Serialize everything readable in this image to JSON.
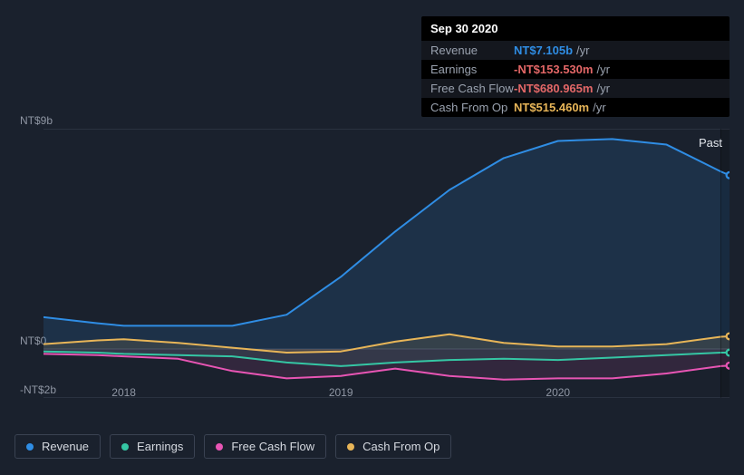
{
  "tooltip": {
    "date": "Sep 30 2020",
    "rows": [
      {
        "label": "Revenue",
        "value": "NT$7.105b",
        "color": "#2f8de4",
        "suffix": "/yr"
      },
      {
        "label": "Earnings",
        "value": "-NT$153.530m",
        "color": "#e36767",
        "suffix": "/yr"
      },
      {
        "label": "Free Cash Flow",
        "value": "-NT$680.965m",
        "color": "#e36767",
        "suffix": "/yr"
      },
      {
        "label": "Cash From Op",
        "value": "NT$515.460m",
        "color": "#e7b558",
        "suffix": "/yr"
      }
    ]
  },
  "chart": {
    "type": "area",
    "background_color": "#1a212d",
    "grid_color": "#3a4252",
    "text_color": "#8f96a3",
    "label_fontsize": 12,
    "past_label": "Past",
    "highlight_x": 3.75,
    "y_ticks": [
      {
        "v": 9,
        "label": "NT$9b"
      },
      {
        "v": 0,
        "label": "NT$0"
      },
      {
        "v": -2,
        "label": "-NT$2b"
      }
    ],
    "x_ticks": [
      {
        "v": 1.0,
        "label": "2018"
      },
      {
        "v": 2.0,
        "label": "2019"
      },
      {
        "v": 3.0,
        "label": "2020"
      }
    ],
    "x_range": [
      0.63,
      3.79
    ],
    "y_range": [
      -2,
      9
    ],
    "series": [
      {
        "key": "revenue",
        "name": "Revenue",
        "color": "#2f8de4",
        "fill_opacity": 0.15,
        "line_width": 2,
        "x": [
          0.63,
          0.88,
          1.0,
          1.25,
          1.5,
          1.75,
          2.0,
          2.25,
          2.5,
          2.75,
          3.0,
          3.25,
          3.5,
          3.75,
          3.79
        ],
        "y": [
          1.3,
          1.05,
          0.95,
          0.95,
          0.95,
          1.4,
          2.95,
          4.8,
          6.5,
          7.8,
          8.5,
          8.58,
          8.35,
          7.25,
          7.1
        ]
      },
      {
        "key": "earnings",
        "name": "Earnings",
        "color": "#35c6a4",
        "fill_opacity": 0.12,
        "line_width": 2,
        "x": [
          0.63,
          0.88,
          1.0,
          1.25,
          1.5,
          1.75,
          2.0,
          2.25,
          2.5,
          2.75,
          3.0,
          3.25,
          3.5,
          3.75,
          3.79
        ],
        "y": [
          -0.1,
          -0.15,
          -0.2,
          -0.25,
          -0.3,
          -0.55,
          -0.7,
          -0.55,
          -0.45,
          -0.4,
          -0.45,
          -0.35,
          -0.25,
          -0.15,
          -0.15
        ]
      },
      {
        "key": "fcf",
        "name": "Free Cash Flow",
        "color": "#e855b4",
        "fill_opacity": 0.12,
        "line_width": 2,
        "x": [
          0.63,
          0.88,
          1.0,
          1.25,
          1.5,
          1.75,
          2.0,
          2.25,
          2.5,
          2.75,
          3.0,
          3.25,
          3.5,
          3.75,
          3.79
        ],
        "y": [
          -0.2,
          -0.25,
          -0.3,
          -0.4,
          -0.9,
          -1.2,
          -1.1,
          -0.8,
          -1.1,
          -1.25,
          -1.2,
          -1.2,
          -1.0,
          -0.7,
          -0.68
        ]
      },
      {
        "key": "cfo",
        "name": "Cash From Op",
        "color": "#e7b558",
        "fill_opacity": 0.12,
        "line_width": 2,
        "x": [
          0.63,
          0.88,
          1.0,
          1.25,
          1.5,
          1.75,
          2.0,
          2.25,
          2.5,
          2.75,
          3.0,
          3.25,
          3.5,
          3.75,
          3.79
        ],
        "y": [
          0.2,
          0.35,
          0.4,
          0.25,
          0.05,
          -0.15,
          -0.1,
          0.3,
          0.6,
          0.25,
          0.1,
          0.1,
          0.2,
          0.5,
          0.52
        ]
      }
    ]
  },
  "legend": [
    {
      "key": "revenue",
      "label": "Revenue",
      "color": "#2f8de4"
    },
    {
      "key": "earnings",
      "label": "Earnings",
      "color": "#35c6a4"
    },
    {
      "key": "fcf",
      "label": "Free Cash Flow",
      "color": "#e855b4"
    },
    {
      "key": "cfo",
      "label": "Cash From Op",
      "color": "#e7b558"
    }
  ]
}
